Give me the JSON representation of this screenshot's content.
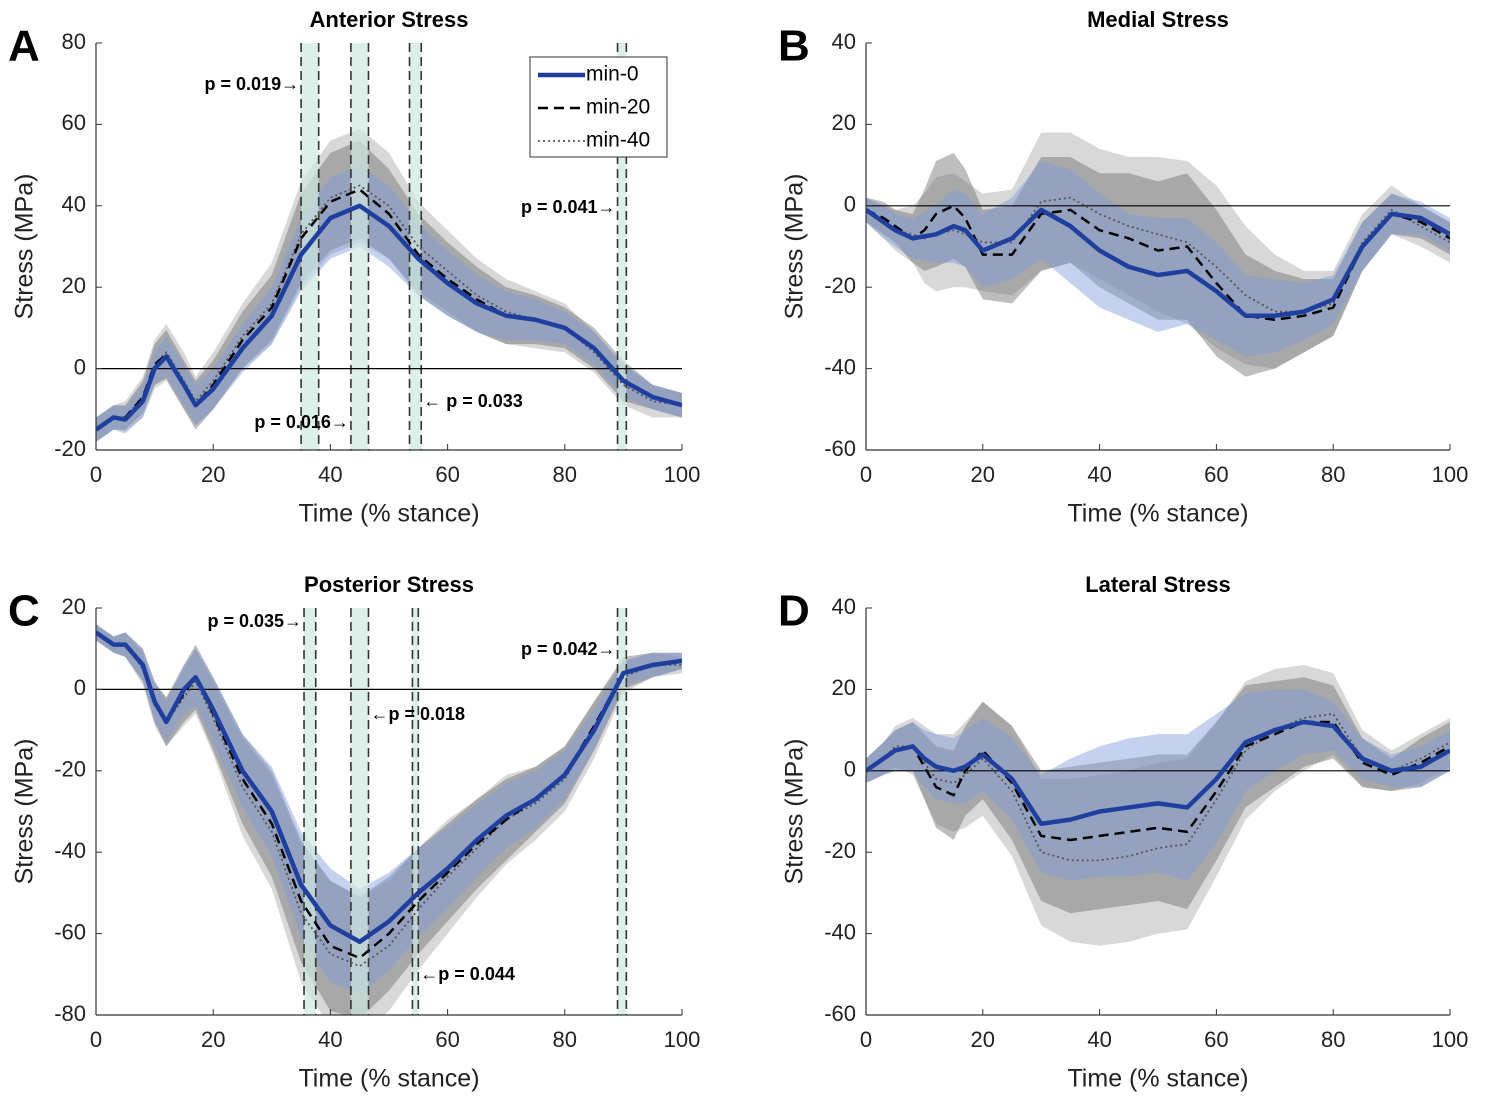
{
  "chart_data": [
    {
      "type": "line",
      "panel": "A",
      "title": "Anterior Stress",
      "xlabel": "Time (% stance)",
      "ylabel": "Stress (MPa)",
      "xlim": [
        0,
        100
      ],
      "xticks": [
        0,
        20,
        40,
        60,
        80,
        100
      ],
      "ylim": [
        -20,
        80
      ],
      "yticks": [
        -20,
        0,
        20,
        40,
        60,
        80
      ],
      "hline": 0,
      "legend": "upper right",
      "x": [
        0,
        3,
        5,
        8,
        10,
        12,
        15,
        17,
        20,
        25,
        30,
        35,
        40,
        45,
        50,
        55,
        60,
        65,
        70,
        75,
        80,
        85,
        90,
        95,
        100
      ],
      "series": [
        {
          "name": "min-0",
          "color": "#1f3f9f",
          "band_color": "#7f9bdb",
          "style": "solid",
          "values": [
            -15,
            -12,
            -12.5,
            -8,
            0,
            3,
            -4,
            -9,
            -5,
            5,
            13,
            28,
            37,
            40,
            35,
            27,
            21,
            16,
            13,
            12,
            10,
            5,
            -3,
            -7,
            -9
          ],
          "sd": [
            3,
            3,
            3,
            4,
            4,
            5,
            5,
            5,
            5,
            6,
            7,
            9,
            10,
            10,
            10,
            9,
            8,
            7,
            6,
            5,
            4,
            4,
            4,
            3,
            3
          ]
        },
        {
          "name": "min-20",
          "color": "#000000",
          "band_color": "#6e6e6e",
          "style": "dashed",
          "values": [
            -15,
            -12,
            -12,
            -7,
            1,
            3.5,
            -4,
            -9,
            -4,
            7,
            15,
            32,
            41,
            44,
            38,
            28,
            22,
            17,
            13,
            12,
            10,
            5,
            -3,
            -7,
            -9
          ],
          "sd": [
            3,
            3,
            3,
            4,
            5,
            6,
            6,
            6,
            6,
            7,
            8,
            11,
            12,
            12,
            11,
            10,
            9,
            8,
            7,
            6,
            5,
            5,
            5,
            3,
            3
          ]
        },
        {
          "name": "min-40",
          "color": "#555555",
          "band_color": "#a8a8a8",
          "style": "dotted",
          "values": [
            -15,
            -12,
            -12,
            -7,
            1,
            4,
            -3,
            -8,
            -3,
            8,
            16,
            33,
            42,
            45,
            40,
            30,
            24,
            18,
            14,
            12,
            10,
            4,
            -4,
            -8,
            -9
          ],
          "sd": [
            3,
            3,
            4,
            5,
            6,
            7,
            7,
            6,
            7,
            8,
            10,
            13,
            14,
            14,
            13,
            11,
            10,
            9,
            8,
            7,
            6,
            5,
            5,
            4,
            3
          ]
        }
      ],
      "regions": [
        {
          "range": [
            35,
            38
          ],
          "label": "p = 0.019→"
        },
        {
          "range": [
            43.5,
            46.5
          ],
          "label": "p = 0.016→"
        },
        {
          "range": [
            53.5,
            55.5
          ],
          "label": "← p = 0.033"
        },
        {
          "range": [
            89,
            90.5
          ],
          "label": "p = 0.041→"
        }
      ]
    },
    {
      "type": "line",
      "panel": "B",
      "title": "Medial Stress",
      "xlabel": "Time (% stance)",
      "ylabel": "Stress (MPa)",
      "xlim": [
        0,
        100
      ],
      "xticks": [
        0,
        20,
        40,
        60,
        80,
        100
      ],
      "ylim": [
        -60,
        40
      ],
      "yticks": [
        -60,
        -40,
        -20,
        0,
        20,
        40
      ],
      "hline": 0,
      "x": [
        0,
        3,
        5,
        8,
        10,
        12,
        15,
        17,
        20,
        25,
        30,
        35,
        40,
        45,
        50,
        55,
        60,
        65,
        70,
        75,
        80,
        85,
        90,
        95,
        100
      ],
      "series": [
        {
          "name": "min-0",
          "color": "#1f3f9f",
          "band_color": "#7f9bdb",
          "style": "solid",
          "values": [
            -1,
            -4,
            -6,
            -8,
            -7.5,
            -7,
            -5,
            -6,
            -11,
            -8,
            -1,
            -5,
            -11,
            -15,
            -17,
            -16,
            -21,
            -27,
            -27,
            -26,
            -23,
            -10,
            -2,
            -3,
            -7
          ],
          "sd": [
            3,
            4,
            4,
            5,
            6,
            7,
            9,
            9,
            9,
            10,
            12,
            14,
            14,
            13,
            14,
            13,
            12,
            10,
            9,
            7,
            6,
            6,
            5,
            4,
            4
          ]
        },
        {
          "name": "min-20",
          "color": "#000000",
          "band_color": "#6e6e6e",
          "style": "dashed",
          "values": [
            -1,
            -3,
            -5,
            -8,
            -6,
            -2,
            0,
            -3,
            -12,
            -12,
            -2,
            -1,
            -6,
            -8,
            -11,
            -10,
            -19,
            -27,
            -28,
            -27,
            -25,
            -10,
            -2,
            -4,
            -8
          ],
          "sd": [
            3,
            4,
            4,
            6,
            10,
            13,
            13,
            12,
            11,
            12,
            14,
            13,
            14,
            16,
            17,
            18,
            18,
            15,
            12,
            9,
            7,
            6,
            5,
            4,
            4
          ]
        },
        {
          "name": "min-40",
          "color": "#555555",
          "band_color": "#a8a8a8",
          "style": "dotted",
          "values": [
            -1,
            -4,
            -6,
            -7,
            -8,
            -7,
            -6,
            -7,
            -9,
            -9,
            1,
            2,
            -2,
            -5,
            -7,
            -9,
            -15,
            -22,
            -26,
            -26,
            -24,
            -9,
            -1,
            -5,
            -9
          ],
          "sd": [
            3,
            4,
            5,
            7,
            11,
            14,
            14,
            13,
            12,
            13,
            17,
            16,
            16,
            17,
            19,
            20,
            20,
            17,
            14,
            10,
            8,
            7,
            6,
            5,
            5
          ]
        }
      ],
      "regions": []
    },
    {
      "type": "line",
      "panel": "C",
      "title": "Posterior Stress",
      "xlabel": "Time (% stance)",
      "ylabel": "Stress (MPa)",
      "xlim": [
        0,
        100
      ],
      "xticks": [
        0,
        20,
        40,
        60,
        80,
        100
      ],
      "ylim": [
        -80,
        20
      ],
      "yticks": [
        -80,
        -60,
        -40,
        -20,
        0,
        20
      ],
      "hline": 0,
      "x": [
        0,
        3,
        5,
        8,
        10,
        12,
        15,
        17,
        20,
        25,
        30,
        35,
        40,
        45,
        50,
        55,
        60,
        65,
        70,
        75,
        80,
        85,
        90,
        95,
        100
      ],
      "series": [
        {
          "name": "min-0",
          "color": "#1f3f9f",
          "band_color": "#7f9bdb",
          "style": "solid",
          "values": [
            14,
            11,
            11,
            6,
            -3,
            -8,
            0,
            3,
            -5,
            -20,
            -30,
            -48,
            -58,
            -62,
            -57,
            -50,
            -44,
            -37,
            -31,
            -27,
            -21,
            -10,
            4,
            6,
            7
          ],
          "sd": [
            2,
            2,
            3,
            4,
            5,
            5,
            6,
            7,
            8,
            9,
            11,
            13,
            14,
            13,
            12,
            11,
            10,
            9,
            8,
            7,
            6,
            5,
            3,
            3,
            2
          ]
        },
        {
          "name": "min-20",
          "color": "#000000",
          "band_color": "#6e6e6e",
          "style": "dashed",
          "values": [
            14,
            11,
            11,
            6,
            -3,
            -8,
            -1,
            3,
            -6,
            -22,
            -33,
            -52,
            -63,
            -66,
            -60,
            -52,
            -45,
            -38,
            -32,
            -27,
            -21,
            -9,
            4,
            6,
            7
          ],
          "sd": [
            2,
            2,
            3,
            4,
            5,
            6,
            7,
            8,
            9,
            11,
            13,
            15,
            16,
            15,
            14,
            13,
            12,
            11,
            10,
            8,
            7,
            6,
            4,
            3,
            2
          ]
        },
        {
          "name": "min-40",
          "color": "#555555",
          "band_color": "#a8a8a8",
          "style": "dotted",
          "values": [
            14,
            11,
            11,
            5,
            -4,
            -8,
            -2,
            2,
            -7,
            -24,
            -35,
            -55,
            -65,
            -68,
            -63,
            -54,
            -46,
            -39,
            -32,
            -28,
            -22,
            -10,
            3,
            6,
            6
          ],
          "sd": [
            2,
            2,
            3,
            4,
            5,
            6,
            7,
            8,
            9,
            12,
            14,
            17,
            18,
            17,
            16,
            15,
            14,
            12,
            11,
            9,
            8,
            7,
            4,
            3,
            2
          ]
        }
      ],
      "regions": [
        {
          "range": [
            35.5,
            37.5
          ],
          "label": "p = 0.035→"
        },
        {
          "range": [
            43.5,
            46.5
          ],
          "label": "←p = 0.018"
        },
        {
          "range": [
            54,
            55
          ],
          "label": "←p = 0.044"
        },
        {
          "range": [
            89,
            90.5
          ],
          "label": "p = 0.042→"
        }
      ]
    },
    {
      "type": "line",
      "panel": "D",
      "title": "Lateral Stress",
      "xlabel": "Time (% stance)",
      "ylabel": "Stress (MPa)",
      "xlim": [
        0,
        100
      ],
      "xticks": [
        0,
        20,
        40,
        60,
        80,
        100
      ],
      "ylim": [
        -60,
        40
      ],
      "yticks": [
        -60,
        -40,
        -20,
        0,
        20,
        40
      ],
      "hline": 0,
      "x": [
        0,
        3,
        5,
        8,
        10,
        12,
        15,
        17,
        20,
        25,
        30,
        35,
        40,
        45,
        50,
        55,
        60,
        65,
        70,
        75,
        80,
        85,
        90,
        95,
        100
      ],
      "series": [
        {
          "name": "min-0",
          "color": "#1f3f9f",
          "band_color": "#7f9bdb",
          "style": "solid",
          "values": [
            0,
            3,
            5,
            6,
            3,
            1,
            0,
            1,
            4,
            -2,
            -13,
            -12,
            -10,
            -9,
            -8,
            -9,
            -2,
            7,
            10,
            12,
            11,
            3,
            0,
            1,
            5
          ],
          "sd": [
            3,
            4,
            5,
            6,
            7,
            8,
            8,
            9,
            9,
            10,
            12,
            15,
            16,
            17,
            17,
            18,
            16,
            12,
            10,
            8,
            6,
            5,
            4,
            5,
            5
          ]
        },
        {
          "name": "min-20",
          "color": "#000000",
          "band_color": "#6e6e6e",
          "style": "dashed",
          "values": [
            0,
            3,
            5,
            6,
            1,
            -4,
            -6,
            0,
            5,
            -3,
            -16,
            -17,
            -16,
            -15,
            -14,
            -15,
            -5,
            6,
            9,
            12,
            12,
            2,
            -1,
            2,
            6
          ],
          "sd": [
            3,
            4,
            5,
            6,
            8,
            10,
            11,
            11,
            12,
            14,
            16,
            18,
            18,
            18,
            18,
            19,
            17,
            15,
            13,
            11,
            9,
            6,
            4,
            6,
            6
          ]
        },
        {
          "name": "min-40",
          "color": "#555555",
          "band_color": "#a8a8a8",
          "style": "dotted",
          "values": [
            0,
            3,
            6,
            6,
            2,
            -2,
            -3,
            -1,
            3,
            -5,
            -20,
            -22,
            -22,
            -21,
            -19,
            -18,
            -7,
            5,
            10,
            13,
            14,
            3,
            0,
            3,
            7
          ],
          "sd": [
            3,
            4,
            5,
            7,
            9,
            11,
            12,
            13,
            14,
            16,
            18,
            20,
            21,
            21,
            21,
            21,
            19,
            17,
            15,
            13,
            10,
            7,
            5,
            6,
            6
          ]
        }
      ],
      "regions": []
    }
  ]
}
